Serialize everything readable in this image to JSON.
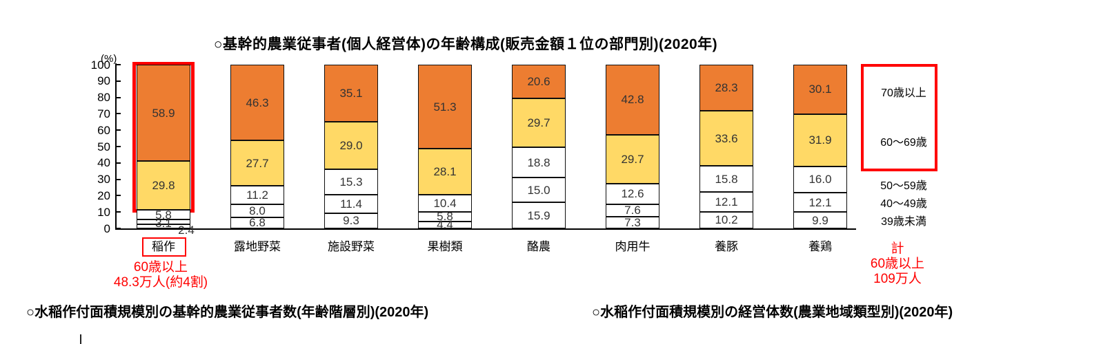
{
  "title": "○基幹的農業従事者(個人経営体)の年齢構成(販売金額１位の部門別)(2020年)",
  "y_unit_label": "(%)",
  "chart_data": {
    "type": "bar",
    "stacked": true,
    "title": "○基幹的農業従事者(個人経営体)の年齢構成(販売金額１位の部門別)(2020年)",
    "xlabel": "",
    "ylabel": "(%)",
    "ylim": [
      0,
      100
    ],
    "yticks": [
      0,
      10,
      20,
      30,
      40,
      50,
      60,
      70,
      80,
      90,
      100
    ],
    "grid": false,
    "legend_position": "right",
    "categories": [
      "稲作",
      "露地野菜",
      "施設野菜",
      "果樹類",
      "酪農",
      "肉用牛",
      "養豚",
      "養鶏"
    ],
    "series": [
      {
        "name": "39歳未満",
        "color": "#FFFFFF",
        "values": [
          2.4,
          6.8,
          9.3,
          4.4,
          15.9,
          7.3,
          10.2,
          9.9
        ]
      },
      {
        "name": "40〜49歳",
        "color": "#FFFFFF",
        "values": [
          3.1,
          8.0,
          11.4,
          5.8,
          15.0,
          7.6,
          12.1,
          12.1
        ]
      },
      {
        "name": "50〜59歳",
        "color": "#FFFFFF",
        "values": [
          5.8,
          11.2,
          15.3,
          10.4,
          18.8,
          12.6,
          15.8,
          16.0
        ]
      },
      {
        "name": "60〜69歳",
        "color": "#FFD966",
        "values": [
          29.8,
          27.7,
          29.0,
          28.1,
          29.7,
          29.7,
          33.6,
          31.9
        ]
      },
      {
        "name": "70歳以上",
        "color": "#ED7D31",
        "values": [
          58.9,
          46.3,
          35.1,
          51.3,
          20.6,
          42.8,
          28.3,
          30.1
        ]
      }
    ]
  },
  "legend": {
    "items_top_to_bottom": [
      "70歳以上",
      "60〜69歳",
      "50〜59歳",
      "40〜49歳",
      "39歳未満"
    ],
    "highlight_color": "#FF0000"
  },
  "highlights": {
    "rice_bar_box_note": "red box around 60歳以上 portion of 稲作 bar",
    "rice_category_boxed_label": "稲作"
  },
  "annotations": {
    "rice": {
      "lines": [
        "60歳以上",
        "48.3万人(約4割)"
      ],
      "color": "#FF0000"
    },
    "total": {
      "lines": [
        "計",
        "60歳以上",
        "109万人"
      ],
      "color": "#FF0000"
    }
  },
  "bottom_headings": {
    "left": "○水稲作付面積規模別の基幹的農業従事者数(年齢階層別)(2020年)",
    "right": "○水稲作付面積規模別の経営体数(農業地域類型別)(2020年)"
  },
  "colors": {
    "seg_70_plus": "#ED7D31",
    "seg_60_69": "#FFD966",
    "seg_white": "#FFFFFF",
    "highlight_red": "#FF0000",
    "axis_black": "#000000"
  }
}
